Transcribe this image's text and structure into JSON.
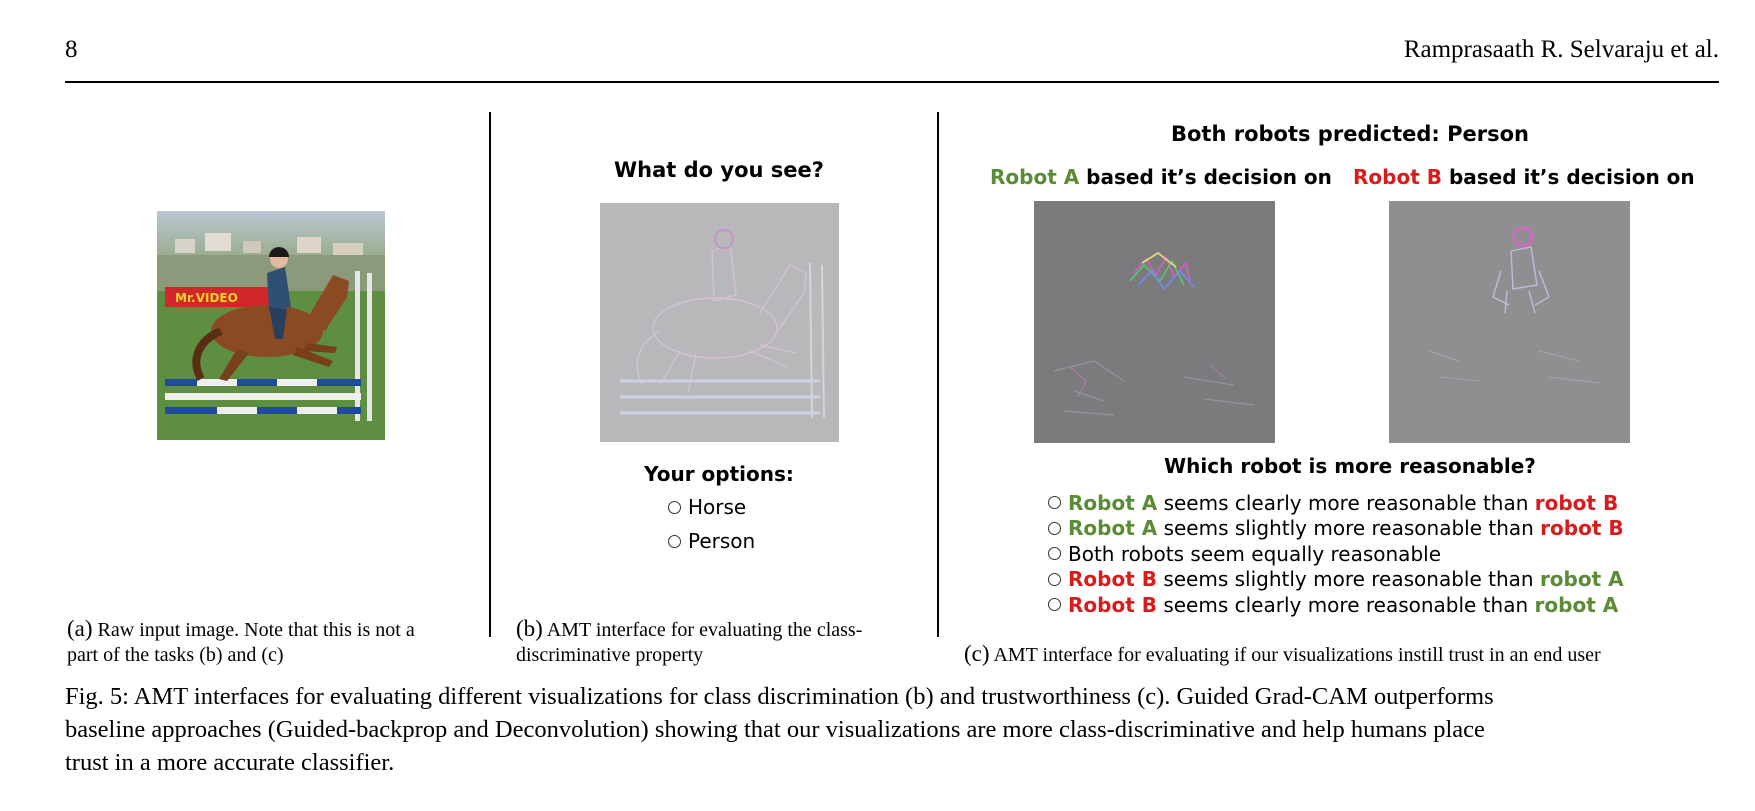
{
  "header": {
    "page_number": "8",
    "running_head": "Ramprasaath R. Selvaraju et al."
  },
  "panel_b": {
    "question": "What do you see?",
    "options_title": "Your options:",
    "options": [
      "Horse",
      "Person"
    ]
  },
  "panel_c": {
    "title": "Both robots predicted: Person",
    "robot_a_heading": {
      "name": "Robot A",
      "rest": "based it’s decision on"
    },
    "robot_b_heading": {
      "name": "Robot B",
      "rest": "based it’s decision on"
    },
    "question": "Which robot is more reasonable?",
    "options": [
      {
        "first": "Robot A",
        "middle": "seems clearly more reasonable than",
        "last": "robot B"
      },
      {
        "first": "Robot A",
        "middle": "seems slightly more reasonable than",
        "last": "robot B"
      },
      {
        "text": "Both robots seem equally reasonable"
      },
      {
        "first": "Robot B",
        "middle": "seems slightly more reasonable than",
        "last": "robot A"
      },
      {
        "first": "Robot B",
        "middle": "seems clearly more reasonable than",
        "last": "robot A"
      }
    ]
  },
  "photo": {
    "sign_text": "Mr.VIDEO"
  },
  "subcaptions": {
    "a": {
      "tag": "(a)",
      "line1": "Raw input image. Note that this is not a",
      "line2": "part of the tasks (b) and (c)"
    },
    "b": {
      "tag": "(b)",
      "line1": "AMT interface for evaluating the class-",
      "line2": "discriminative property"
    },
    "c": {
      "tag": "(c)",
      "text": "AMT interface for evaluating if our visualizations instill trust in an end user"
    }
  },
  "figure_caption": {
    "line1": "Fig. 5: AMT interfaces for evaluating different visualizations for class discrimination (b) and trustworthiness (c). Guided Grad-CAM outperforms",
    "line2": "baseline approaches (Guided-backprop and Deconvolution) showing that our visualizations are more class-discriminative and help humans place",
    "line3": "trust in a more accurate classifier."
  },
  "colors": {
    "robot_a": "#5a8b35",
    "robot_b": "#d81c1c"
  }
}
